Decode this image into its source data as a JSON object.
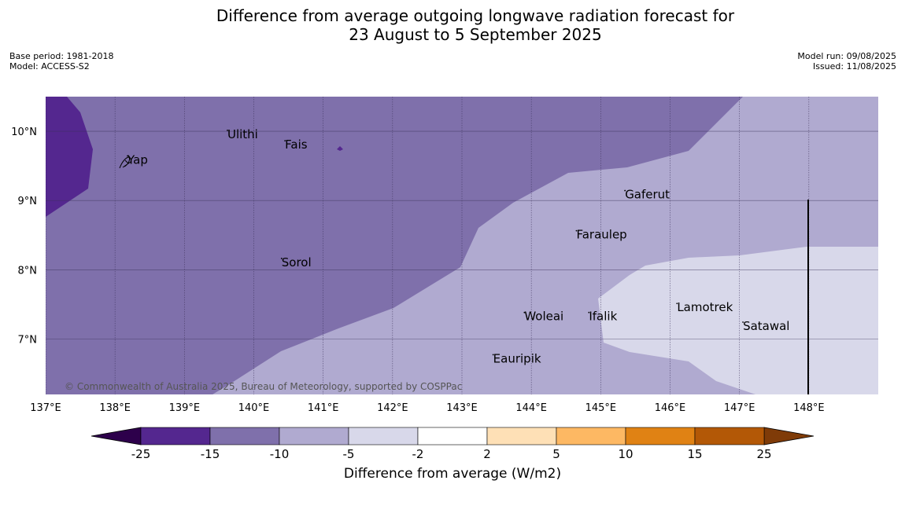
{
  "title": {
    "line1": "Difference from average outgoing longwave radiation forecast for",
    "line2": "23 August to 5 September 2025"
  },
  "meta_left": {
    "base_period": "Base period: 1981-2018",
    "model": "Model: ACCESS-S2"
  },
  "meta_right": {
    "model_run": "Model run: 09/08/2025",
    "issued": "Issued: 11/08/2025"
  },
  "map": {
    "lon_range": [
      137,
      149
    ],
    "lat_range": [
      6.2,
      10.5
    ],
    "lon_ticks": [
      {
        "value": 137,
        "label": "137°E"
      },
      {
        "value": 138,
        "label": "138°E"
      },
      {
        "value": 139,
        "label": "139°E"
      },
      {
        "value": 140,
        "label": "140°E"
      },
      {
        "value": 141,
        "label": "141°E"
      },
      {
        "value": 142,
        "label": "142°E"
      },
      {
        "value": 143,
        "label": "143°E"
      },
      {
        "value": 144,
        "label": "144°E"
      },
      {
        "value": 145,
        "label": "145°E"
      },
      {
        "value": 146,
        "label": "146°E"
      },
      {
        "value": 147,
        "label": "147°E"
      },
      {
        "value": 148,
        "label": "148°E"
      }
    ],
    "lat_ticks": [
      {
        "value": 10,
        "label": "10°N"
      },
      {
        "value": 9,
        "label": "9°N"
      },
      {
        "value": 8,
        "label": "8°N"
      },
      {
        "value": 7,
        "label": "7°N"
      }
    ],
    "places": [
      {
        "name": "Yap",
        "lon": 138.18,
        "lat": 9.53
      },
      {
        "name": "Ulithi",
        "lon": 139.62,
        "lat": 9.9
      },
      {
        "name": "Fais",
        "lon": 140.45,
        "lat": 9.75
      },
      {
        "name": "Gaferut",
        "lon": 145.35,
        "lat": 9.03
      },
      {
        "name": "Faraulep",
        "lon": 144.65,
        "lat": 8.45
      },
      {
        "name": "Sorol",
        "lon": 140.4,
        "lat": 8.05
      },
      {
        "name": "Woleai",
        "lon": 143.9,
        "lat": 7.27
      },
      {
        "name": "Ifalik",
        "lon": 144.83,
        "lat": 7.27
      },
      {
        "name": "Lamotrek",
        "lon": 146.1,
        "lat": 7.4
      },
      {
        "name": "Satawal",
        "lon": 147.05,
        "lat": 7.13
      },
      {
        "name": "Eauripik",
        "lon": 143.45,
        "lat": 6.66
      }
    ],
    "copyright": "© Commonwealth of Australia 2025, Bureau of Meteorology, supported by COSPPac"
  },
  "colorbar": {
    "label": "Difference from average (W/m2)",
    "ticks": [
      "-25",
      "-15",
      "-10",
      "-5",
      "-2",
      "2",
      "5",
      "10",
      "15",
      "25"
    ],
    "colors": [
      "#54278f",
      "#7f70ab",
      "#b0aad0",
      "#d8d8ea",
      "#ffffff",
      "#fee0b6",
      "#fdb863",
      "#e08214",
      "#b35806"
    ],
    "under_color": "#2d004b",
    "over_color": "#7f3b08"
  }
}
